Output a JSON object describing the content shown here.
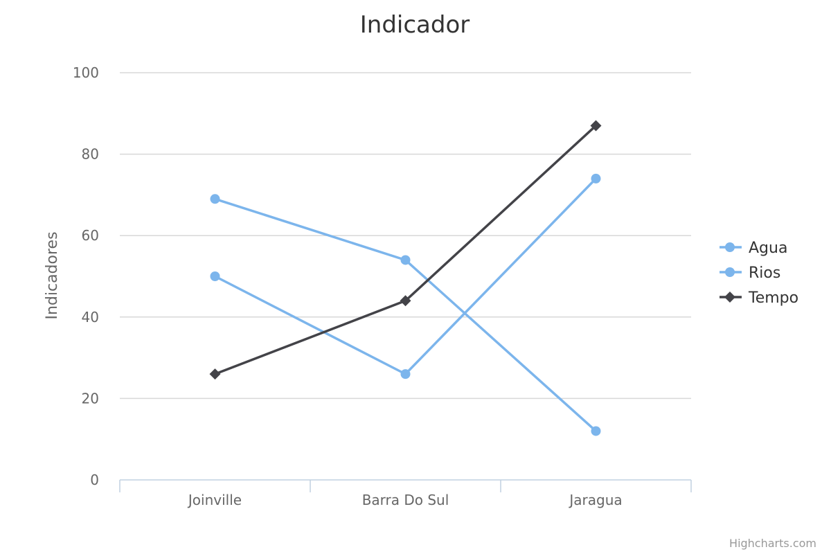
{
  "chart_data": {
    "type": "line",
    "title": "Indicador",
    "xlabel": "",
    "ylabel": "Indicadores",
    "categories": [
      "Joinville",
      "Barra Do Sul",
      "Jaragua"
    ],
    "ylim": [
      0,
      100
    ],
    "yticks": [
      0,
      20,
      40,
      60,
      80,
      100
    ],
    "grid": true,
    "legend_position": "right",
    "series": [
      {
        "name": "Agua",
        "values": [
          69,
          54,
          12
        ],
        "color": "#7cb5ec",
        "marker": "circle"
      },
      {
        "name": "Rios",
        "values": [
          50,
          26,
          74
        ],
        "color": "#7cb5ec",
        "marker": "circle"
      },
      {
        "name": "Tempo",
        "values": [
          26,
          44,
          87
        ],
        "color": "#434348",
        "marker": "diamond"
      }
    ]
  },
  "credits": "Highcharts.com",
  "colors": {
    "grid": "#d8d8d8",
    "axis": "#c0d0e0"
  }
}
